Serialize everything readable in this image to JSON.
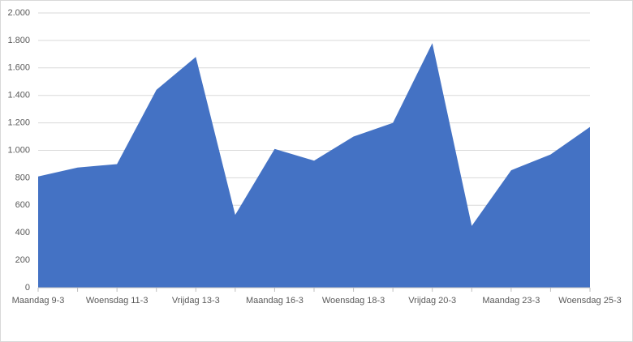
{
  "chart_data": {
    "type": "area",
    "color": "#4472c4",
    "grid": true,
    "categories": [
      "Maandag 9-3",
      null,
      "Woensdag 11-3",
      null,
      "Vrijdag 13-3",
      null,
      "Maandag 16-3",
      null,
      "Woensdag 18-3",
      null,
      "Vrijdag 20-3",
      null,
      "Maandag 23-3",
      null,
      "Woensdag 25-3"
    ],
    "values": [
      810,
      875,
      900,
      1440,
      1680,
      530,
      1010,
      925,
      1100,
      1200,
      1780,
      450,
      855,
      970,
      1170
    ],
    "ylim": [
      0,
      2000
    ],
    "yticks": [
      0,
      200,
      400,
      600,
      800,
      {
        "value": 1000,
        "label": "1.000"
      },
      {
        "value": 1200,
        "label": "1.200"
      },
      {
        "value": 1400,
        "label": "1.400"
      },
      {
        "value": 1600,
        "label": "1.600"
      },
      {
        "value": 1800,
        "label": "1.800"
      },
      {
        "value": 2000,
        "label": "2.000"
      }
    ]
  }
}
